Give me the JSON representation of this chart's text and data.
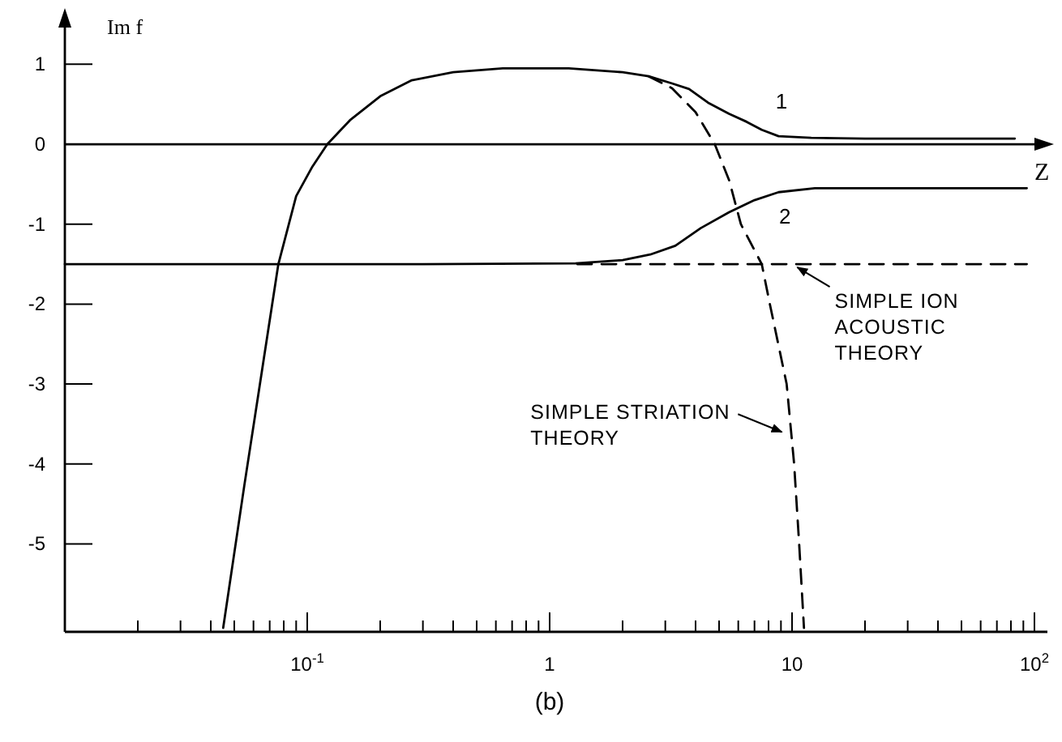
{
  "chart_data": {
    "type": "line",
    "xlabel": "Z",
    "ylabel": "Im f",
    "log": "x",
    "grid": false,
    "marker": "none",
    "xlim": [
      0.01,
      100
    ],
    "ylim": [
      -6.1,
      1.5
    ],
    "xticks": [
      {
        "value": 0.02,
        "label": null
      },
      {
        "value": 0.03,
        "label": null
      },
      {
        "value": 0.04,
        "label": null
      },
      {
        "value": 0.05,
        "label": null
      },
      {
        "value": 0.06,
        "label": null
      },
      {
        "value": 0.07,
        "label": null
      },
      {
        "value": 0.08,
        "label": null
      },
      {
        "value": 0.09,
        "label": null
      },
      {
        "value": 0.1,
        "label": "10$^{-1}$"
      },
      {
        "value": 0.2,
        "label": null
      },
      {
        "value": 0.3,
        "label": null
      },
      {
        "value": 0.4,
        "label": null
      },
      {
        "value": 0.5,
        "label": null
      },
      {
        "value": 0.6,
        "label": null
      },
      {
        "value": 0.7,
        "label": null
      },
      {
        "value": 0.8,
        "label": null
      },
      {
        "value": 0.9,
        "label": null
      },
      1,
      {
        "value": 2,
        "label": null
      },
      {
        "value": 3,
        "label": null
      },
      {
        "value": 4,
        "label": null
      },
      {
        "value": 5,
        "label": null
      },
      {
        "value": 6,
        "label": null
      },
      {
        "value": 7,
        "label": null
      },
      {
        "value": 8,
        "label": null
      },
      {
        "value": 9,
        "label": null
      },
      10,
      {
        "value": 20,
        "label": null
      },
      {
        "value": 30,
        "label": null
      },
      {
        "value": 40,
        "label": null
      },
      {
        "value": 50,
        "label": null
      },
      {
        "value": 60,
        "label": null
      },
      {
        "value": 70,
        "label": null
      },
      {
        "value": 80,
        "label": null
      },
      {
        "value": 90,
        "label": null
      },
      {
        "value": 100,
        "label": "10$^{2}$"
      }
    ],
    "yticks": [
      -5,
      -4,
      -3,
      -2,
      -1,
      0,
      1
    ],
    "ref_lines": [
      {
        "axis": "y",
        "value": 0,
        "color": "#000000",
        "line_style": "solid"
      }
    ],
    "series": [
      {
        "name": "1",
        "color": "#000000",
        "line_style": "solid",
        "x": [
          0.045,
          0.055,
          0.065,
          0.076,
          0.09,
          0.105,
          0.121,
          0.15,
          0.2,
          0.27,
          0.4,
          0.64,
          1.2,
          2.0,
          2.56,
          3.2,
          3.76,
          4.5,
          5.5,
          6.5,
          7.5,
          8.8,
          12,
          20,
          83
        ],
        "values": [
          -6.05,
          -4.27,
          -2.84,
          -1.5,
          -0.65,
          -0.28,
          0,
          0.3,
          0.6,
          0.8,
          0.9,
          0.95,
          0.95,
          0.9,
          0.85,
          0.76,
          0.69,
          0.52,
          0.38,
          0.28,
          0.18,
          0.1,
          0.08,
          0.07,
          0.07
        ]
      },
      {
        "name": "2",
        "color": "#000000",
        "line_style": "solid",
        "x": [
          0.01,
          0.3,
          1.28,
          2.0,
          2.6,
          3.3,
          4.2,
          5.5,
          7,
          8.8,
          12.4,
          25,
          93
        ],
        "values": [
          -1.5,
          -1.5,
          -1.49,
          -1.45,
          -1.38,
          -1.27,
          -1.05,
          -0.85,
          -0.7,
          -0.6,
          -0.55,
          -0.55,
          -0.55
        ]
      },
      {
        "color": "#000000",
        "line_style": "dashed",
        "x": [
          2.56,
          3.2,
          4.0,
          4.8,
          5.5,
          6.15,
          7.5,
          8.1,
          9.5,
          10.2,
          10.7,
          11.2
        ],
        "values": [
          0.85,
          0.7,
          0.4,
          0,
          -0.45,
          -1,
          -1.5,
          -2,
          -3,
          -4,
          -5,
          -6.05
        ]
      },
      {
        "color": "#000000",
        "line_style": "dashed",
        "x": [
          1.3,
          93
        ],
        "values": [
          -1.5,
          -1.5
        ]
      }
    ],
    "annotations": [
      {
        "text": "SIMPLE ION ACOUSTIC THEORY",
        "x": 10.2,
        "y": -1.5
      },
      {
        "text": "SIMPLE STRIATION THEORY",
        "x": 9.5,
        "y": -3.6
      },
      "(b)"
    ]
  }
}
